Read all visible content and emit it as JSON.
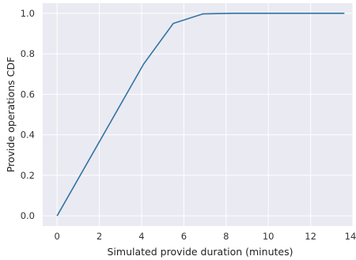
{
  "chart_data": {
    "type": "line",
    "title": "",
    "xlabel": "Simulated provide duration (minutes)",
    "ylabel": "Provide operations CDF",
    "xlim": [
      -0.68,
      14
    ],
    "ylim": [
      -0.05,
      1.05
    ],
    "x_ticks": [
      0,
      2,
      4,
      6,
      8,
      10,
      12,
      14
    ],
    "y_ticks": [
      0.0,
      0.2,
      0.4,
      0.6,
      0.8,
      1.0
    ],
    "x_tick_labels": [
      "0",
      "2",
      "4",
      "6",
      "8",
      "10",
      "12",
      "14"
    ],
    "y_tick_labels": [
      "0.0",
      "0.2",
      "0.4",
      "0.6",
      "0.8",
      "1.0"
    ],
    "grid": true,
    "style": "darkgrid",
    "colors": {
      "background": "#eaeaf2",
      "grid": "#ffffff",
      "line": "#3274a1"
    },
    "series": [
      {
        "x": [
          0,
          4.1,
          5.5,
          6.9,
          8.3,
          9.7,
          11.1,
          12.5,
          13.6
        ],
        "y": [
          0.0,
          0.75,
          0.95,
          0.997,
          1.0,
          1.0,
          1.0,
          1.0,
          1.0
        ]
      }
    ]
  }
}
